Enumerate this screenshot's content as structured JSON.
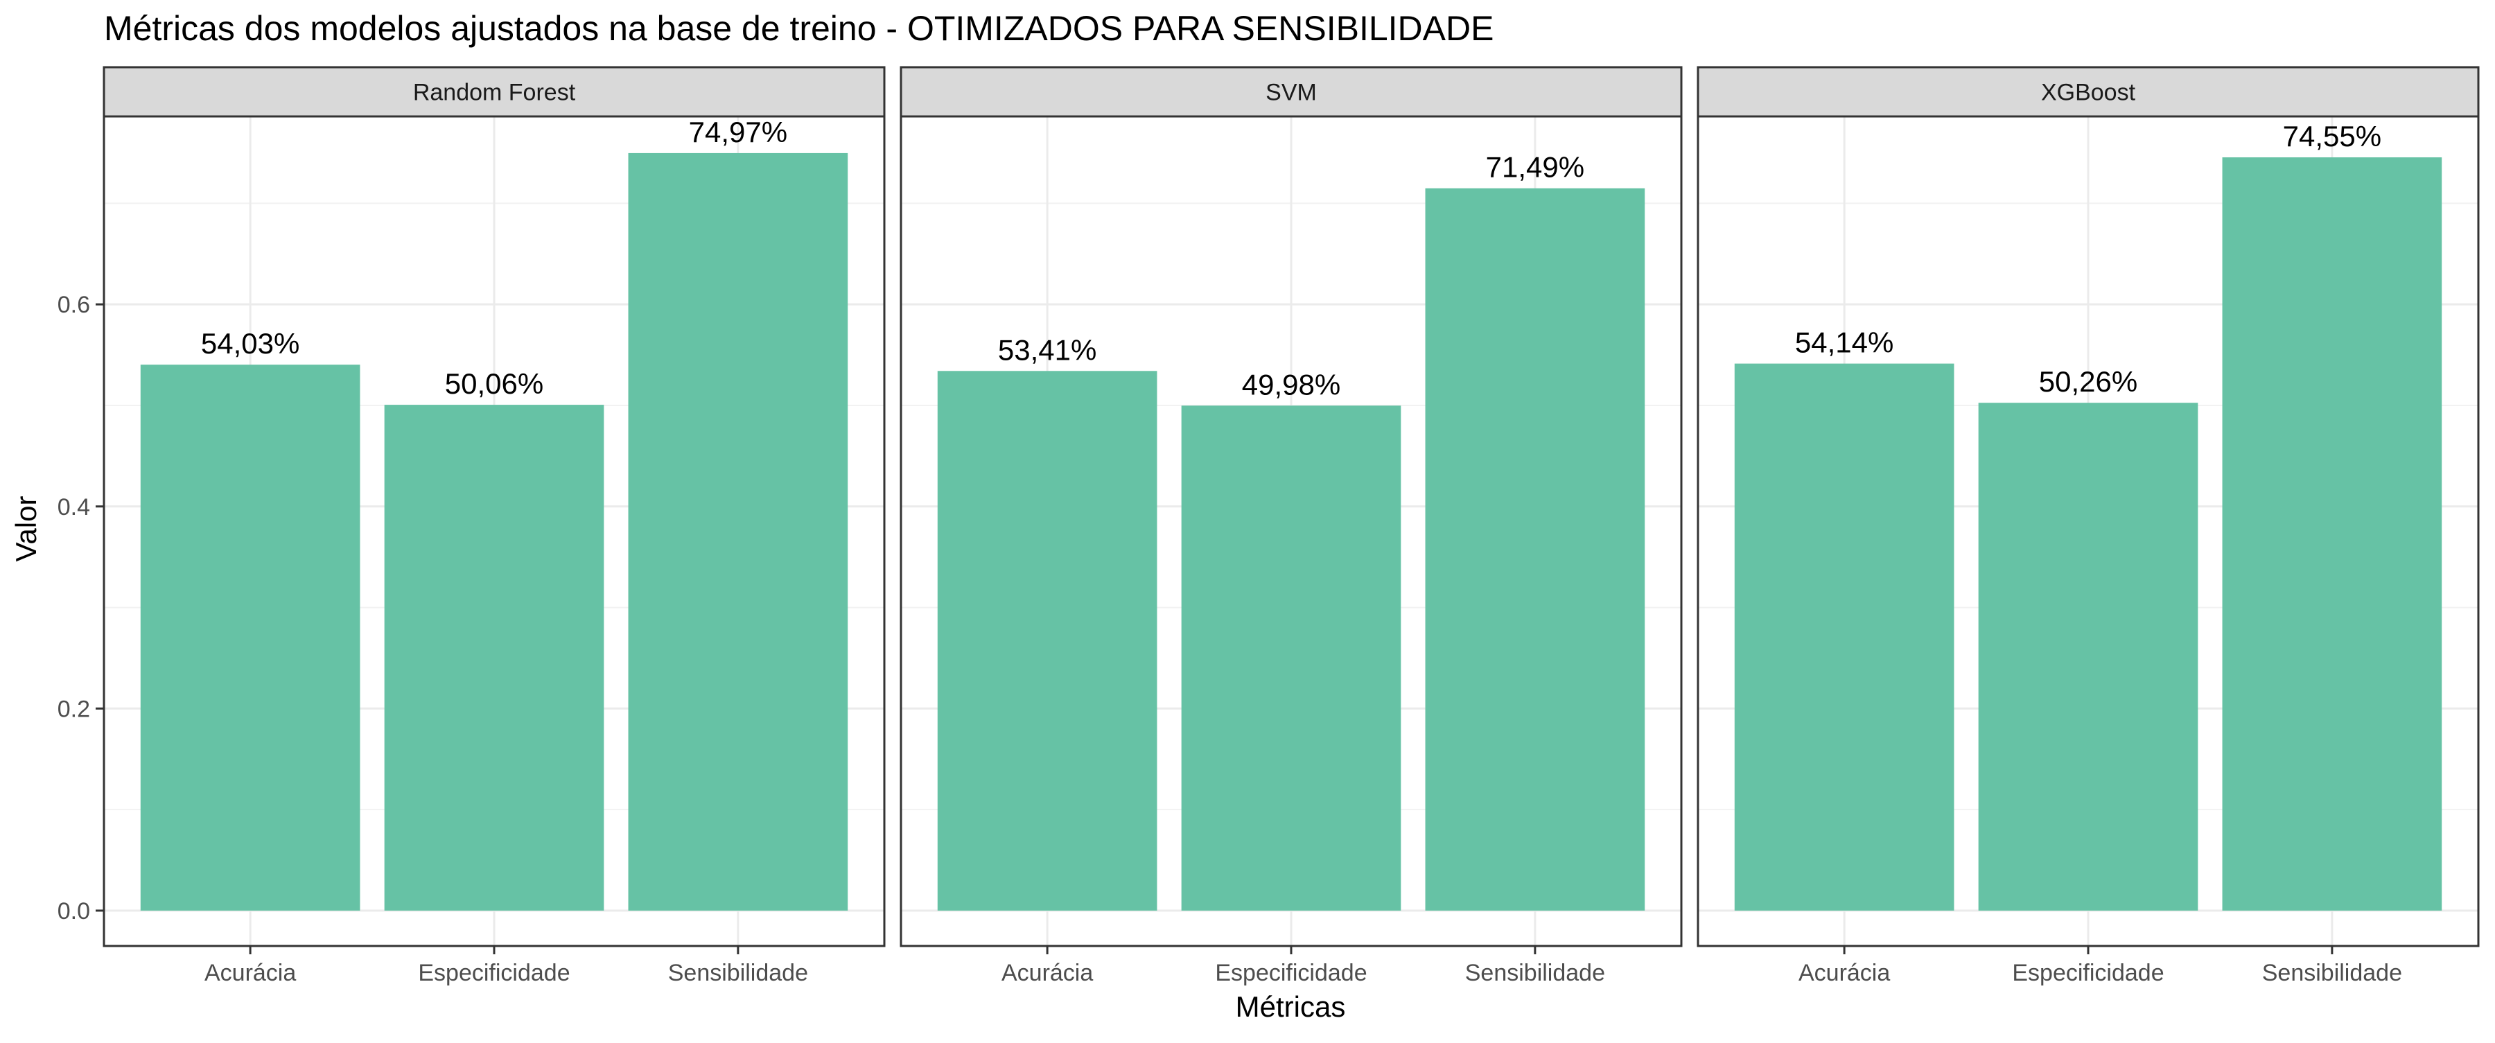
{
  "chart_data": {
    "type": "bar",
    "title": "Métricas dos modelos ajustados na base de treino - OTIMIZADOS PARA SENSIBILIDADE",
    "xlabel": "Métricas",
    "ylabel": "Valor",
    "ylim": [
      -0.035,
      0.786
    ],
    "yticks": [
      0.0,
      0.2,
      0.4,
      0.6
    ],
    "ytick_labels": [
      "0.0",
      "0.2",
      "0.4",
      "0.6"
    ],
    "grid": true,
    "bar_color": "#66c2a5",
    "categories": [
      "Acurácia",
      "Especificidade",
      "Sensibilidade"
    ],
    "facets": [
      {
        "name": "Random Forest",
        "values": [
          0.5403,
          0.5006,
          0.7497
        ],
        "labels": [
          "54,03%",
          "50,06%",
          "74,97%"
        ]
      },
      {
        "name": "SVM",
        "values": [
          0.5341,
          0.4998,
          0.7149
        ],
        "labels": [
          "53,41%",
          "49,98%",
          "71,49%"
        ]
      },
      {
        "name": "XGBoost",
        "values": [
          0.5414,
          0.5026,
          0.7455
        ],
        "labels": [
          "54,14%",
          "50,26%",
          "74,55%"
        ]
      }
    ]
  }
}
